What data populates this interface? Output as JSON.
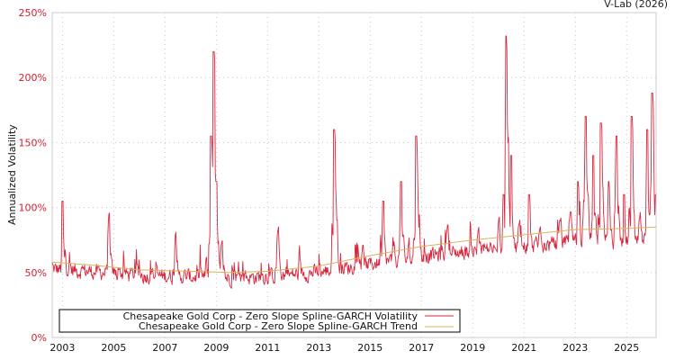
{
  "header": {
    "credit": "V-Lab (2026)"
  },
  "colors": {
    "volatility": "#d7263d",
    "trend": "#d9b45a",
    "grid": "#c8c8c8",
    "axis": "#cccccc",
    "ytick": "#d0202f",
    "legend_border": "#000000"
  },
  "legend": {
    "items": [
      {
        "label": "Chesapeake Gold Corp - Zero Slope Spline-GARCH Volatility",
        "color": "#d7263d"
      },
      {
        "label": "Chesapeake Gold Corp - Zero Slope Spline-GARCH Trend",
        "color": "#d9b45a"
      }
    ]
  },
  "chart_data": {
    "type": "line",
    "title": "",
    "xlabel": "",
    "ylabel": "Annualized Volatility",
    "ylim": [
      0,
      250
    ],
    "xlim": [
      2002.6,
      2026.15
    ],
    "grid": true,
    "legend_position": "bottom-left inside",
    "y_ticks": [
      "0%",
      "50%",
      "100%",
      "150%",
      "200%",
      "250%"
    ],
    "x_ticks": [
      "2003",
      "2005",
      "2007",
      "2009",
      "2011",
      "2013",
      "2015",
      "2017",
      "2019",
      "2021",
      "2023",
      "2025"
    ],
    "series": [
      {
        "name": "Chesapeake Gold Corp - Zero Slope Spline-GARCH Volatility",
        "x": [
          2002.6,
          2002.9,
          2003.0,
          2003.3,
          2003.6,
          2004.0,
          2004.4,
          2004.8,
          2005.2,
          2005.7,
          2006.1,
          2006.5,
          2007.0,
          2007.4,
          2007.8,
          2008.2,
          2008.6,
          2008.8,
          2008.9,
          2009.0,
          2009.2,
          2009.5,
          2009.9,
          2010.3,
          2010.7,
          2011.1,
          2011.4,
          2011.8,
          2012.2,
          2012.6,
          2013.0,
          2013.4,
          2013.6,
          2013.9,
          2014.3,
          2014.7,
          2015.1,
          2015.5,
          2015.9,
          2016.2,
          2016.5,
          2016.8,
          2017.2,
          2017.6,
          2018.0,
          2018.4,
          2018.8,
          2019.2,
          2019.6,
          2020.0,
          2020.2,
          2020.3,
          2020.5,
          2020.8,
          2021.2,
          2021.6,
          2022.0,
          2022.4,
          2022.8,
          2023.1,
          2023.4,
          2023.7,
          2024.0,
          2024.3,
          2024.6,
          2024.9,
          2025.2,
          2025.5,
          2025.8,
          2026.0,
          2026.15
        ],
        "values": [
          65,
          50,
          105,
          55,
          48,
          60,
          45,
          100,
          50,
          45,
          60,
          48,
          55,
          90,
          45,
          50,
          65,
          155,
          220,
          120,
          80,
          60,
          50,
          48,
          45,
          45,
          90,
          55,
          48,
          50,
          60,
          55,
          160,
          65,
          60,
          75,
          60,
          105,
          70,
          120,
          80,
          155,
          75,
          70,
          90,
          70,
          80,
          90,
          75,
          95,
          110,
          232,
          140,
          95,
          110,
          90,
          80,
          95,
          100,
          120,
          170,
          140,
          165,
          120,
          155,
          110,
          170,
          100,
          160,
          188,
          110
        ]
      },
      {
        "name": "Chesapeake Gold Corp - Zero Slope Spline-GARCH Trend",
        "x": [
          2002.6,
          2004.0,
          2006.0,
          2008.0,
          2009.5,
          2011.0,
          2013.0,
          2015.0,
          2017.0,
          2019.0,
          2021.0,
          2023.0,
          2025.0,
          2026.15
        ],
        "values": [
          58,
          56,
          52,
          51,
          50,
          51,
          55,
          63,
          70,
          75,
          79,
          83,
          84,
          85
        ]
      }
    ]
  }
}
